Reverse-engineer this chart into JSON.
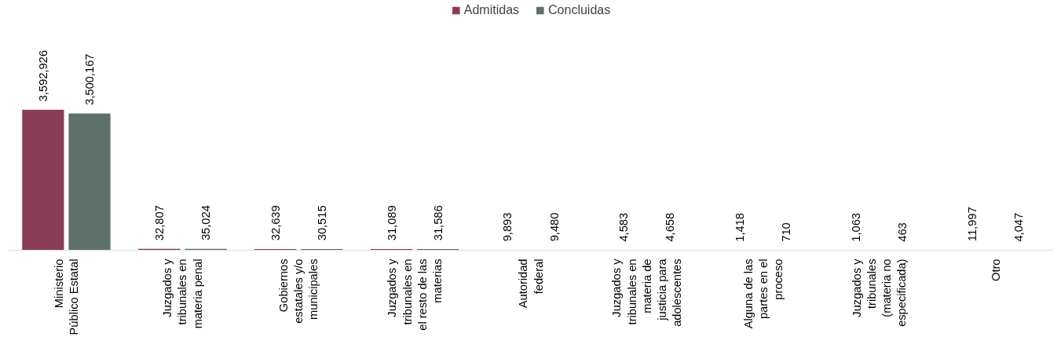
{
  "chart_data": {
    "type": "bar",
    "categories": [
      "Ministerio Público Estatal",
      "Juzgados y tribunales en materia penal",
      "Gobiernos estatales y/o municipales",
      "Juzgados y tribunales en el resto de las materias",
      "Autoridad federal",
      "Juzgados y tribunales en materia de justicia para adolescentes",
      "Alguna de las partes en el proceso",
      "Juzgados y tribunales (materia no especificada)",
      "Otro"
    ],
    "series": [
      {
        "name": "Admitidas",
        "color": "#893c55",
        "values": [
          3592926,
          32807,
          32639,
          31089,
          9893,
          4583,
          1418,
          1063,
          11997
        ],
        "value_labels": [
          "3,592,926",
          "32,807",
          "32,639",
          "31,089",
          "9,893",
          "4,583",
          "1,418",
          "1,063",
          "11,997"
        ]
      },
      {
        "name": "Concluidas",
        "color": "#5e716a",
        "values": [
          3500167,
          35024,
          30515,
          31586,
          9480,
          4658,
          710,
          463,
          4047
        ],
        "value_labels": [
          "3,500,167",
          "35,024",
          "30,515",
          "31,586",
          "9,480",
          "4,658",
          "710",
          "463",
          "4,047"
        ]
      }
    ],
    "legend": "top",
    "grid": false,
    "tick_labels": "x"
  }
}
